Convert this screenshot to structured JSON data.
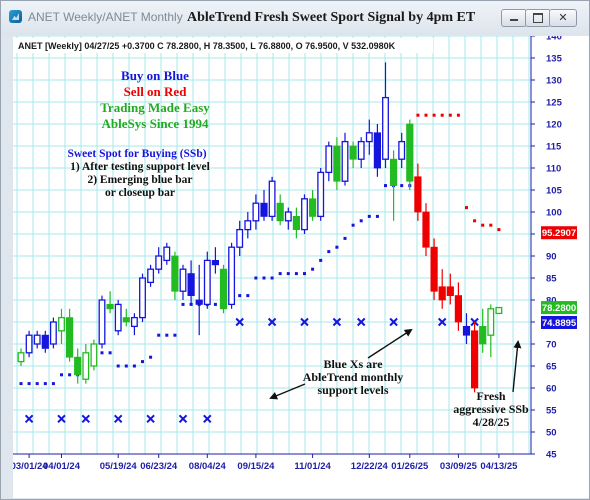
{
  "window": {
    "title": "ANET Weekly/ANET Monthly",
    "signal_title": "AbleTrend Fresh Sweet Sport Signal by 4pm ET",
    "minimize_icon": "minimize-icon",
    "maximize_icon": "maximize-icon",
    "close_icon": "close-icon"
  },
  "colors": {
    "blue": "#1515dd",
    "red": "#ee0000",
    "green": "#22bb22",
    "grid": "#a5e8e8",
    "axis_text": "#1e1ea8"
  },
  "chart_data": {
    "type": "candlestick",
    "symbol_line": "ANET [Weekly] 04/27/25 +0.3700 C 78.2800, H 78.3500, L 76.8800, O 76.9500, V 532.0980K",
    "ylim": [
      45,
      140
    ],
    "y_ticks": [
      45,
      50,
      55,
      60,
      65,
      70,
      75,
      80,
      85,
      90,
      95,
      100,
      105,
      110,
      115,
      120,
      125,
      130,
      135,
      140
    ],
    "grid": true,
    "x_tick_labels": [
      {
        "label": "03/01/24",
        "bar": 1
      },
      {
        "label": "04/01/24",
        "bar": 5
      },
      {
        "label": "05/19/24",
        "bar": 12
      },
      {
        "label": "06/23/24",
        "bar": 17
      },
      {
        "label": "08/04/24",
        "bar": 23
      },
      {
        "label": "09/15/24",
        "bar": 29
      },
      {
        "label": "11/01/24",
        "bar": 36
      },
      {
        "label": "12/22/24",
        "bar": 43
      },
      {
        "label": "01/26/25",
        "bar": 48
      },
      {
        "label": "03/09/25",
        "bar": 54
      },
      {
        "label": "04/13/25",
        "bar": 59
      }
    ],
    "candles": [
      {
        "o": 66,
        "h": 69,
        "l": 65,
        "c": 68,
        "color": "green"
      },
      {
        "o": 68,
        "h": 73,
        "l": 67,
        "c": 72,
        "color": "blue"
      },
      {
        "o": 70,
        "h": 73,
        "l": 69,
        "c": 72,
        "color": "blue"
      },
      {
        "o": 72,
        "h": 73,
        "l": 68,
        "c": 69,
        "color": "blue"
      },
      {
        "o": 70,
        "h": 76,
        "l": 69,
        "c": 75,
        "color": "blue"
      },
      {
        "o": 73,
        "h": 78,
        "l": 70,
        "c": 76,
        "color": "green"
      },
      {
        "o": 76,
        "h": 78,
        "l": 66,
        "c": 67,
        "color": "green"
      },
      {
        "o": 67,
        "h": 69,
        "l": 61,
        "c": 63,
        "color": "green"
      },
      {
        "o": 62,
        "h": 70,
        "l": 61,
        "c": 68,
        "color": "green"
      },
      {
        "o": 65,
        "h": 71,
        "l": 64,
        "c": 70,
        "color": "green"
      },
      {
        "o": 70,
        "h": 81,
        "l": 69,
        "c": 80,
        "color": "blue"
      },
      {
        "o": 79,
        "h": 82,
        "l": 77,
        "c": 78,
        "color": "green"
      },
      {
        "o": 73,
        "h": 80,
        "l": 72,
        "c": 79,
        "color": "blue"
      },
      {
        "o": 76,
        "h": 78,
        "l": 74,
        "c": 75,
        "color": "green"
      },
      {
        "o": 74,
        "h": 77,
        "l": 72,
        "c": 76,
        "color": "blue"
      },
      {
        "o": 76,
        "h": 86,
        "l": 75,
        "c": 85,
        "color": "blue"
      },
      {
        "o": 84,
        "h": 88,
        "l": 83,
        "c": 87,
        "color": "blue"
      },
      {
        "o": 87,
        "h": 92,
        "l": 86,
        "c": 90,
        "color": "blue"
      },
      {
        "o": 89,
        "h": 93,
        "l": 88,
        "c": 92,
        "color": "blue"
      },
      {
        "o": 90,
        "h": 91,
        "l": 80,
        "c": 82,
        "color": "green"
      },
      {
        "o": 82,
        "h": 88,
        "l": 80,
        "c": 87,
        "color": "blue"
      },
      {
        "o": 86,
        "h": 89,
        "l": 79,
        "c": 81,
        "color": "blue"
      },
      {
        "o": 80,
        "h": 88,
        "l": 72,
        "c": 79,
        "color": "blue"
      },
      {
        "o": 79,
        "h": 91,
        "l": 78,
        "c": 89,
        "color": "blue"
      },
      {
        "o": 89,
        "h": 92,
        "l": 86,
        "c": 88,
        "color": "blue"
      },
      {
        "o": 87,
        "h": 88,
        "l": 77,
        "c": 78,
        "color": "green"
      },
      {
        "o": 79,
        "h": 93,
        "l": 78,
        "c": 92,
        "color": "blue"
      },
      {
        "o": 92,
        "h": 98,
        "l": 90,
        "c": 96,
        "color": "blue"
      },
      {
        "o": 96,
        "h": 100,
        "l": 94,
        "c": 98,
        "color": "blue"
      },
      {
        "o": 98,
        "h": 104,
        "l": 96,
        "c": 102,
        "color": "blue"
      },
      {
        "o": 102,
        "h": 105,
        "l": 98,
        "c": 99,
        "color": "blue"
      },
      {
        "o": 99,
        "h": 108,
        "l": 98,
        "c": 107,
        "color": "blue"
      },
      {
        "o": 102,
        "h": 104,
        "l": 97,
        "c": 98,
        "color": "green"
      },
      {
        "o": 98,
        "h": 101,
        "l": 96,
        "c": 100,
        "color": "blue"
      },
      {
        "o": 99,
        "h": 101,
        "l": 94,
        "c": 96,
        "color": "green"
      },
      {
        "o": 96,
        "h": 104,
        "l": 95,
        "c": 103,
        "color": "blue"
      },
      {
        "o": 103,
        "h": 105,
        "l": 98,
        "c": 99,
        "color": "green"
      },
      {
        "o": 99,
        "h": 110,
        "l": 98,
        "c": 109,
        "color": "blue"
      },
      {
        "o": 109,
        "h": 116,
        "l": 107,
        "c": 115,
        "color": "blue"
      },
      {
        "o": 115,
        "h": 117,
        "l": 105,
        "c": 107,
        "color": "green"
      },
      {
        "o": 107,
        "h": 118,
        "l": 106,
        "c": 116,
        "color": "blue"
      },
      {
        "o": 115,
        "h": 116,
        "l": 110,
        "c": 112,
        "color": "green"
      },
      {
        "o": 112,
        "h": 117,
        "l": 110,
        "c": 116,
        "color": "blue"
      },
      {
        "o": 116,
        "h": 121,
        "l": 113,
        "c": 118,
        "color": "blue"
      },
      {
        "o": 118,
        "h": 120,
        "l": 108,
        "c": 110,
        "color": "blue"
      },
      {
        "o": 112,
        "h": 134,
        "l": 110,
        "c": 126,
        "color": "blue"
      },
      {
        "o": 112,
        "h": 114,
        "l": 98,
        "c": 106,
        "color": "green"
      },
      {
        "o": 112,
        "h": 118,
        "l": 110,
        "c": 116,
        "color": "blue"
      },
      {
        "o": 120,
        "h": 121,
        "l": 105,
        "c": 107,
        "color": "green"
      },
      {
        "o": 108,
        "h": 111,
        "l": 98,
        "c": 100,
        "color": "red"
      },
      {
        "o": 100,
        "h": 102,
        "l": 90,
        "c": 92,
        "color": "red"
      },
      {
        "o": 92,
        "h": 94,
        "l": 80,
        "c": 82,
        "color": "red"
      },
      {
        "o": 83,
        "h": 87,
        "l": 78,
        "c": 80,
        "color": "red"
      },
      {
        "o": 83,
        "h": 86,
        "l": 79,
        "c": 81,
        "color": "red"
      },
      {
        "o": 81,
        "h": 84,
        "l": 73,
        "c": 75,
        "color": "red"
      },
      {
        "o": 74,
        "h": 77,
        "l": 70,
        "c": 72,
        "color": "blue"
      },
      {
        "o": 73,
        "h": 75,
        "l": 59,
        "c": 60,
        "color": "red"
      },
      {
        "o": 74,
        "h": 78,
        "l": 68,
        "c": 70,
        "color": "green"
      },
      {
        "o": 72,
        "h": 79,
        "l": 67,
        "c": 78,
        "color": "green"
      },
      {
        "o": 76.95,
        "h": 78.35,
        "l": 76.88,
        "c": 78.28,
        "color": "green"
      }
    ],
    "blue_dots": [
      [
        0,
        61
      ],
      [
        1,
        61
      ],
      [
        2,
        61
      ],
      [
        3,
        61
      ],
      [
        4,
        61
      ],
      [
        5,
        63
      ],
      [
        6,
        63
      ],
      [
        7,
        63
      ],
      [
        8,
        63
      ],
      [
        9,
        68
      ],
      [
        10,
        68
      ],
      [
        11,
        68
      ],
      [
        12,
        65
      ],
      [
        13,
        65
      ],
      [
        14,
        65
      ],
      [
        15,
        66
      ],
      [
        16,
        67
      ],
      [
        17,
        72
      ],
      [
        18,
        72
      ],
      [
        19,
        72
      ],
      [
        20,
        79
      ],
      [
        21,
        79
      ],
      [
        22,
        79
      ],
      [
        23,
        79
      ],
      [
        24,
        79
      ],
      [
        25,
        79
      ],
      [
        26,
        81
      ],
      [
        27,
        81
      ],
      [
        28,
        81
      ],
      [
        29,
        85
      ],
      [
        30,
        85
      ],
      [
        31,
        85
      ],
      [
        32,
        86
      ],
      [
        33,
        86
      ],
      [
        34,
        86
      ],
      [
        35,
        86
      ],
      [
        36,
        87
      ],
      [
        37,
        89
      ],
      [
        38,
        91
      ],
      [
        39,
        92
      ],
      [
        40,
        94
      ],
      [
        41,
        97
      ],
      [
        42,
        98
      ],
      [
        43,
        99
      ],
      [
        44,
        99
      ],
      [
        45,
        106
      ],
      [
        46,
        106
      ],
      [
        47,
        106
      ],
      [
        48,
        106
      ]
    ],
    "red_dots": [
      [
        49,
        122
      ],
      [
        50,
        122
      ],
      [
        51,
        122
      ],
      [
        52,
        122
      ],
      [
        53,
        122
      ],
      [
        54,
        122
      ],
      [
        55,
        101
      ],
      [
        56,
        98
      ],
      [
        57,
        97
      ],
      [
        58,
        97
      ],
      [
        59,
        96
      ]
    ],
    "monthly_support_x": [
      [
        1,
        53
      ],
      [
        5,
        53
      ],
      [
        8,
        53
      ],
      [
        12,
        53
      ],
      [
        16,
        53
      ],
      [
        20,
        53
      ],
      [
        23,
        53
      ],
      [
        27,
        75
      ],
      [
        31,
        75
      ],
      [
        35,
        75
      ],
      [
        39,
        75
      ],
      [
        42,
        75
      ],
      [
        46,
        75
      ],
      [
        52,
        75
      ],
      [
        56,
        75
      ]
    ],
    "price_tags": [
      {
        "label": "95.2907",
        "value": 95.29,
        "color": "red"
      },
      {
        "label": "78.2800",
        "value": 78.28,
        "color": "green"
      },
      {
        "label": "74.8895",
        "value": 74.89,
        "color": "blue"
      }
    ],
    "annotations": {
      "buy": "Buy on Blue",
      "sell": "Sell on Red",
      "tagline1": "Trading Made Easy",
      "tagline2": "AbleSys Since 1994",
      "ssb_title": "Sweet Spot for Buying (SSb)",
      "ssb_line1": "1) After testing support level",
      "ssb_line2": "2) Emerging blue bar",
      "ssb_line3": "or closeup bar",
      "bluex_line1": "Blue Xs are",
      "bluex_line2": "AbleTrend monthly",
      "bluex_line3": "support levels",
      "fresh_line1": "Fresh",
      "fresh_line2": "aggressive SSb",
      "fresh_line3": "4/28/25"
    }
  }
}
